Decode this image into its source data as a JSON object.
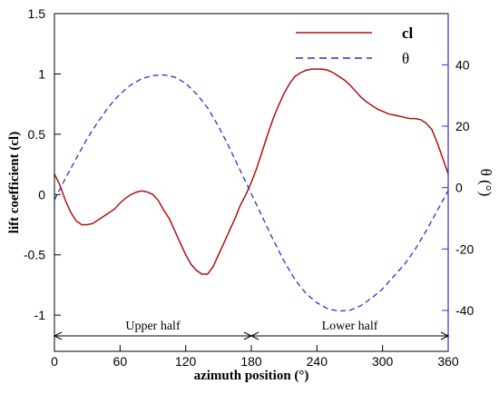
{
  "chart_data": {
    "type": "line",
    "xlabel": "azimuth position (°)",
    "ylabel_left": "lift coefficient (cl)",
    "ylabel_right": "θ (°)",
    "xlim": [
      0,
      360
    ],
    "ylim_left": [
      -1.3,
      1.5
    ],
    "ylim_right": [
      -53.33,
      56.67
    ],
    "x_ticks": [
      0,
      60,
      120,
      180,
      240,
      300,
      360
    ],
    "y_left_ticks": [
      -1,
      -0.5,
      0,
      0.5,
      1,
      1.5
    ],
    "y_left_tick_labels": [
      "-1",
      "-0.5",
      "0",
      "0.5",
      "1",
      "1.5"
    ],
    "y_right_ticks": [
      -40,
      -20,
      0,
      20,
      40
    ],
    "grid": false,
    "legend_position": "top-right",
    "series": [
      {
        "name": "cl",
        "axis": "left",
        "color": "#b01010",
        "style": "solid",
        "x": [
          0,
          5,
          10,
          15,
          20,
          25,
          30,
          35,
          40,
          45,
          50,
          55,
          60,
          65,
          70,
          75,
          80,
          85,
          90,
          95,
          100,
          105,
          110,
          115,
          120,
          125,
          130,
          135,
          140,
          145,
          150,
          155,
          160,
          165,
          170,
          175,
          180,
          185,
          190,
          195,
          200,
          205,
          210,
          215,
          220,
          225,
          230,
          235,
          240,
          245,
          250,
          255,
          260,
          265,
          270,
          275,
          280,
          285,
          290,
          295,
          300,
          305,
          310,
          315,
          320,
          325,
          330,
          335,
          340,
          345,
          350,
          355,
          360
        ],
        "values": [
          0.17,
          0.08,
          -0.05,
          -0.15,
          -0.22,
          -0.25,
          -0.25,
          -0.24,
          -0.21,
          -0.18,
          -0.15,
          -0.12,
          -0.07,
          -0.03,
          0.0,
          0.02,
          0.03,
          0.02,
          0.0,
          -0.05,
          -0.13,
          -0.2,
          -0.3,
          -0.4,
          -0.5,
          -0.58,
          -0.63,
          -0.66,
          -0.66,
          -0.6,
          -0.5,
          -0.4,
          -0.3,
          -0.2,
          -0.09,
          0.0,
          0.1,
          0.22,
          0.36,
          0.5,
          0.63,
          0.74,
          0.84,
          0.92,
          0.98,
          1.01,
          1.03,
          1.04,
          1.04,
          1.04,
          1.03,
          1.01,
          0.98,
          0.95,
          0.91,
          0.86,
          0.81,
          0.77,
          0.74,
          0.71,
          0.69,
          0.67,
          0.66,
          0.65,
          0.64,
          0.63,
          0.63,
          0.62,
          0.59,
          0.54,
          0.43,
          0.3,
          0.17
        ]
      },
      {
        "name": "θ",
        "axis": "right",
        "color": "#2f2fd6",
        "style": "dashed",
        "x": [
          0,
          10,
          20,
          30,
          40,
          50,
          60,
          70,
          80,
          90,
          100,
          110,
          120,
          130,
          140,
          150,
          160,
          170,
          180,
          190,
          200,
          210,
          220,
          230,
          240,
          250,
          260,
          270,
          280,
          290,
          300,
          310,
          320,
          330,
          340,
          350,
          360
        ],
        "values": [
          -4,
          3,
          9.5,
          16,
          21.5,
          26.5,
          30.5,
          33.5,
          35.5,
          36.5,
          36.7,
          36,
          34,
          30.5,
          26,
          20,
          13,
          5.5,
          -2,
          -9.5,
          -17,
          -24,
          -30,
          -34.5,
          -37.5,
          -39.5,
          -40.2,
          -40,
          -38.5,
          -36,
          -33,
          -29,
          -25,
          -20,
          -14,
          -7.5,
          -1
        ]
      }
    ],
    "annotations": [
      {
        "text": "Upper half",
        "x_start": 0,
        "x_end": 180
      },
      {
        "text": "Lower half",
        "x_start": 180,
        "x_end": 360
      }
    ]
  }
}
